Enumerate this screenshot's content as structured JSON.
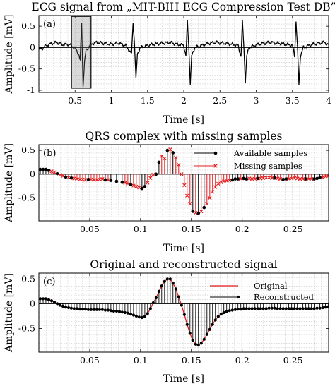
{
  "chart_data": [
    {
      "type": "line",
      "panel_label": "(a)",
      "title": "ECG signal from „MIT-BIH ECG Compression Test DB”",
      "xlabel": "Time [s]",
      "ylabel": "Amplitude [mV]",
      "xlim": [
        0,
        4
      ],
      "ylim": [
        -1.05,
        0.75
      ],
      "xticks": [
        0.5,
        1,
        1.5,
        2,
        2.5,
        3,
        3.5,
        4
      ],
      "xtick_labels": [
        "0.5",
        "1",
        "1.5",
        "2",
        "2.5",
        "3",
        "3.5",
        "4"
      ],
      "yticks": [
        -1,
        -0.5,
        0,
        0.5
      ],
      "ytick_labels": [
        "-1",
        "-0.5",
        "0",
        "0.5"
      ],
      "grid": true,
      "highlight_box": {
        "x": [
          0.45,
          0.72
        ],
        "y": [
          -0.95,
          0.73
        ]
      },
      "beats_s": [
        0.59,
        1.32,
        2.07,
        2.83,
        3.57
      ],
      "series": [
        {
          "color": "#000000",
          "x": [
            0,
            0.05,
            0.1,
            0.15,
            0.2,
            0.25,
            0.3,
            0.35,
            0.4,
            0.45,
            0.5,
            0.55,
            0.57,
            0.59,
            0.61,
            0.63,
            0.65,
            0.7,
            0.75,
            0.8,
            0.9,
            1.0,
            1.1,
            1.2,
            1.28,
            1.3,
            1.32,
            1.34,
            1.36,
            1.4,
            1.5,
            1.6,
            1.7,
            1.8,
            1.9,
            2.0,
            2.03,
            2.05,
            2.07,
            2.09,
            2.11,
            2.15,
            2.25,
            2.35,
            2.45,
            2.55,
            2.65,
            2.75,
            2.79,
            2.81,
            2.83,
            2.85,
            2.87,
            2.9,
            3.0,
            3.1,
            3.2,
            3.3,
            3.4,
            3.5,
            3.53,
            3.55,
            3.57,
            3.59,
            3.61,
            3.65,
            3.75,
            3.85,
            3.95,
            4.0
          ],
          "y": [
            -0.05,
            -0.02,
            0.05,
            0.08,
            0.1,
            0.12,
            0.09,
            0.06,
            0.08,
            0.05,
            -0.02,
            -0.15,
            -0.3,
            0.58,
            -0.9,
            -0.35,
            -0.08,
            0.05,
            0.1,
            0.12,
            0.1,
            0.08,
            0.1,
            0.05,
            -0.15,
            0.6,
            0.1,
            -0.75,
            -0.15,
            0.0,
            0.05,
            0.08,
            0.1,
            0.12,
            0.08,
            0.05,
            -0.2,
            0.62,
            0.0,
            -0.85,
            -0.2,
            0.0,
            0.05,
            0.1,
            0.12,
            0.1,
            0.08,
            0.05,
            -0.2,
            0.6,
            0.0,
            -0.8,
            -0.2,
            0.0,
            0.06,
            0.1,
            0.12,
            0.1,
            0.08,
            0.05,
            -0.2,
            0.63,
            0.0,
            -0.88,
            -0.2,
            0.0,
            0.06,
            0.1,
            0.12,
            0.06
          ]
        }
      ]
    },
    {
      "type": "stem",
      "panel_label": "(b)",
      "title": "QRS complex with missing samples",
      "xlabel": "Time [s]",
      "ylabel": "Amplitude [mV]",
      "xlim": [
        0,
        0.285
      ],
      "ylim": [
        -0.98,
        0.62
      ],
      "xticks": [
        0.05,
        0.1,
        0.15,
        0.2,
        0.25
      ],
      "xtick_labels": [
        "0.05",
        "0.1",
        "0.15",
        "0.2",
        "0.25"
      ],
      "yticks": [
        -0.5,
        0,
        0.5
      ],
      "ytick_labels": [
        "-0.5",
        "0",
        "0.5"
      ],
      "grid": true,
      "legend": "top-right",
      "series": [
        {
          "name": "Available samples",
          "color": "#000000",
          "marker": "dot",
          "x": [
            0.0014,
            0.0042,
            0.0069,
            0.0097,
            0.0181,
            0.0264,
            0.0319,
            0.0486,
            0.0653,
            0.0708,
            0.0764,
            0.0819,
            0.0903,
            0.1014,
            0.1042,
            0.1153,
            0.1181,
            0.1264,
            0.1319,
            0.1514,
            0.1569,
            0.1625,
            0.1903,
            0.1931,
            0.1958,
            0.2014,
            0.2042,
            0.2153,
            0.2319,
            0.2403,
            0.2431,
            0.2625,
            0.2708,
            0.2736,
            0.2764
          ],
          "y": [
            0.1,
            0.1,
            0.1,
            0.08,
            0.01,
            -0.06,
            -0.08,
            -0.11,
            -0.12,
            -0.13,
            -0.15,
            -0.17,
            -0.22,
            -0.3,
            -0.26,
            0.0,
            0.25,
            0.5,
            0.45,
            -0.78,
            -0.82,
            -0.7,
            -0.12,
            -0.1,
            -0.1,
            -0.09,
            -0.1,
            -0.09,
            -0.08,
            -0.11,
            -0.1,
            -0.1,
            -0.1,
            -0.09,
            -0.07
          ]
        },
        {
          "name": "Missing samples",
          "color": "#e41a1c",
          "marker": "x",
          "x": [
            0.0125,
            0.0153,
            0.0208,
            0.0236,
            0.0292,
            0.0347,
            0.0375,
            0.0403,
            0.0431,
            0.0458,
            0.0514,
            0.0542,
            0.0569,
            0.0597,
            0.0625,
            0.0681,
            0.0847,
            0.0875,
            0.0931,
            0.0958,
            0.0986,
            0.1069,
            0.1097,
            0.1125,
            0.1208,
            0.1236,
            0.1292,
            0.1347,
            0.1375,
            0.1403,
            0.1431,
            0.1458,
            0.1486,
            0.1542,
            0.1597,
            0.1653,
            0.1681,
            0.1708,
            0.1736,
            0.1764,
            0.1792,
            0.1819,
            0.1847,
            0.1875,
            0.1986,
            0.2069,
            0.2097,
            0.2125,
            0.2181,
            0.2208,
            0.2236,
            0.2264,
            0.2292,
            0.2347,
            0.2375,
            0.2458,
            0.2486,
            0.2514,
            0.2542,
            0.2569,
            0.2597,
            0.2653,
            0.2681,
            0.2792,
            0.2819,
            0.2847
          ],
          "y": [
            0.06,
            0.04,
            -0.01,
            -0.04,
            -0.07,
            -0.09,
            -0.1,
            -0.11,
            -0.11,
            -0.12,
            -0.11,
            -0.12,
            -0.12,
            -0.11,
            -0.1,
            -0.12,
            -0.18,
            -0.2,
            -0.24,
            -0.26,
            -0.28,
            -0.18,
            -0.08,
            -0.01,
            0.38,
            0.33,
            0.52,
            0.35,
            0.2,
            0.0,
            -0.23,
            -0.45,
            -0.62,
            -0.81,
            -0.78,
            -0.62,
            -0.5,
            -0.37,
            -0.27,
            -0.2,
            -0.17,
            -0.15,
            -0.14,
            -0.13,
            -0.1,
            -0.09,
            -0.1,
            -0.1,
            -0.09,
            -0.08,
            -0.07,
            -0.07,
            -0.08,
            -0.09,
            -0.1,
            -0.1,
            -0.09,
            -0.08,
            -0.09,
            -0.1,
            -0.1,
            -0.1,
            -0.1,
            -0.07,
            -0.05,
            -0.04
          ]
        }
      ]
    },
    {
      "type": "line",
      "panel_label": "(c)",
      "title": "Original and reconstructed signal",
      "xlabel": "Time [s]",
      "ylabel": "Amplitude [mV]",
      "xlim": [
        0,
        0.285
      ],
      "ylim": [
        -0.98,
        0.62
      ],
      "xticks": [
        0.05,
        0.1,
        0.15,
        0.2,
        0.25
      ],
      "xtick_labels": [
        "0.05",
        "0.1",
        "0.15",
        "0.2",
        "0.25"
      ],
      "yticks": [
        -0.5,
        0,
        0.5
      ],
      "ytick_labels": [
        "-0.5",
        "0",
        "0.5"
      ],
      "grid": true,
      "legend": "top-right",
      "series": [
        {
          "name": "Original",
          "color": "#e41a1c",
          "marker": "none"
        },
        {
          "name": "Reconstructed",
          "color": "#000000",
          "marker": "dot-stem"
        }
      ],
      "x": [
        0.0014,
        0.0042,
        0.0069,
        0.0097,
        0.0125,
        0.0153,
        0.0181,
        0.0208,
        0.0236,
        0.0264,
        0.0292,
        0.0319,
        0.0347,
        0.0375,
        0.0403,
        0.0431,
        0.0458,
        0.0486,
        0.0514,
        0.0542,
        0.0569,
        0.0597,
        0.0625,
        0.0653,
        0.0681,
        0.0708,
        0.0736,
        0.0764,
        0.0792,
        0.0819,
        0.0847,
        0.0875,
        0.0903,
        0.0931,
        0.0958,
        0.0986,
        0.1014,
        0.1042,
        0.1069,
        0.1097,
        0.1125,
        0.1153,
        0.1181,
        0.1208,
        0.1236,
        0.1264,
        0.1292,
        0.1319,
        0.1347,
        0.1375,
        0.1403,
        0.1431,
        0.1458,
        0.1486,
        0.1514,
        0.1542,
        0.1569,
        0.1597,
        0.1625,
        0.1653,
        0.1681,
        0.1708,
        0.1736,
        0.1764,
        0.1792,
        0.1819,
        0.1847,
        0.1875,
        0.1903,
        0.1931,
        0.1958,
        0.1986,
        0.2014,
        0.2042,
        0.2069,
        0.2097,
        0.2125,
        0.2153,
        0.2181,
        0.2208,
        0.2236,
        0.2264,
        0.2292,
        0.2319,
        0.2347,
        0.2375,
        0.2403,
        0.2431,
        0.2458,
        0.2486,
        0.2514,
        0.2542,
        0.2569,
        0.2597,
        0.2625,
        0.2653,
        0.2681,
        0.2708,
        0.2736,
        0.2764,
        0.2792,
        0.2819,
        0.2847
      ],
      "y": [
        0.1,
        0.1,
        0.1,
        0.08,
        0.06,
        0.03,
        0.0,
        -0.03,
        -0.05,
        -0.07,
        -0.08,
        -0.09,
        -0.1,
        -0.1,
        -0.11,
        -0.11,
        -0.11,
        -0.12,
        -0.12,
        -0.12,
        -0.12,
        -0.12,
        -0.12,
        -0.13,
        -0.13,
        -0.14,
        -0.15,
        -0.15,
        -0.16,
        -0.17,
        -0.18,
        -0.19,
        -0.21,
        -0.23,
        -0.25,
        -0.27,
        -0.28,
        -0.26,
        -0.2,
        -0.1,
        0.02,
        0.12,
        0.25,
        0.36,
        0.45,
        0.5,
        0.5,
        0.42,
        0.3,
        0.14,
        -0.03,
        -0.22,
        -0.42,
        -0.6,
        -0.74,
        -0.82,
        -0.84,
        -0.8,
        -0.72,
        -0.62,
        -0.52,
        -0.42,
        -0.33,
        -0.26,
        -0.21,
        -0.18,
        -0.16,
        -0.14,
        -0.13,
        -0.12,
        -0.11,
        -0.11,
        -0.1,
        -0.1,
        -0.1,
        -0.1,
        -0.1,
        -0.1,
        -0.1,
        -0.1,
        -0.1,
        -0.09,
        -0.09,
        -0.09,
        -0.1,
        -0.1,
        -0.1,
        -0.1,
        -0.1,
        -0.1,
        -0.1,
        -0.1,
        -0.1,
        -0.1,
        -0.1,
        -0.1,
        -0.1,
        -0.1,
        -0.09,
        -0.09,
        -0.08,
        -0.07,
        -0.06
      ]
    }
  ]
}
